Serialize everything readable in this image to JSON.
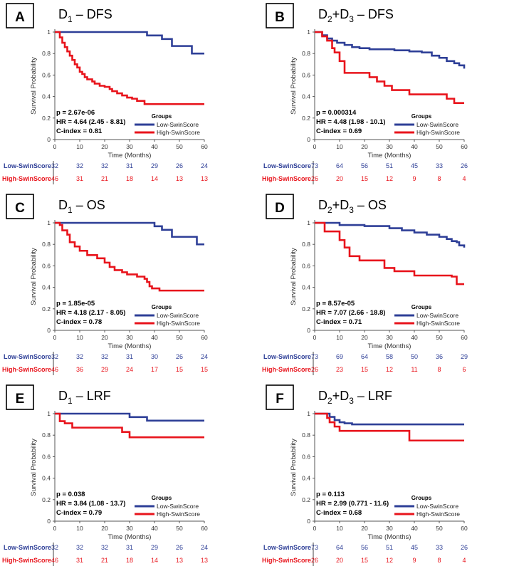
{
  "colors": {
    "low": "#2e3f97",
    "high": "#e8141c",
    "axis": "#555555",
    "risk_label_low": "#2e3f97",
    "risk_label_high": "#e8141c"
  },
  "common": {
    "xlabel": "Time (Months)",
    "ylabel": "Survival Probability",
    "legend_title": "Groups",
    "legend_low": "Low-SwinScore",
    "legend_high": "High-SwinScore",
    "risk_low_label": "Low-SwinScore",
    "risk_high_label": "High-SwinScore",
    "xticks": [
      "0",
      "10",
      "20",
      "30",
      "40",
      "50",
      "60"
    ],
    "yticks": [
      "0",
      "0.2",
      "0.4",
      "0.6",
      "0.8",
      "1"
    ]
  },
  "chart_data": [
    {
      "type": "line",
      "letter": "A",
      "title_main": "D",
      "title_sub": "1",
      "title_rest": "– DFS",
      "p": "p = 2.67e-06",
      "hr": "HR = 4.64 (2.45 - 8.81)",
      "cindex": "C-index = 0.81",
      "xlim": [
        0,
        60
      ],
      "ylim": [
        0,
        1
      ],
      "series": [
        {
          "group": "low",
          "x": [
            0,
            37,
            43,
            47,
            55,
            60
          ],
          "y": [
            1,
            0.968,
            0.935,
            0.87,
            0.8,
            0.8
          ]
        },
        {
          "group": "high",
          "x": [
            0,
            2,
            3,
            4,
            5,
            6,
            7,
            8,
            9,
            10,
            11,
            12,
            13,
            15,
            16,
            18,
            20,
            22,
            23,
            25,
            27,
            29,
            31,
            33,
            36,
            60
          ],
          "y": [
            1,
            0.95,
            0.9,
            0.86,
            0.82,
            0.78,
            0.74,
            0.7,
            0.67,
            0.63,
            0.61,
            0.58,
            0.56,
            0.54,
            0.52,
            0.5,
            0.49,
            0.47,
            0.45,
            0.43,
            0.41,
            0.39,
            0.38,
            0.36,
            0.33,
            0.33
          ]
        }
      ],
      "risk_low": [
        "32",
        "32",
        "32",
        "31",
        "29",
        "26",
        "24"
      ],
      "risk_high": [
        "46",
        "31",
        "21",
        "18",
        "14",
        "13",
        "13"
      ]
    },
    {
      "type": "line",
      "letter": "B",
      "title_main": "D",
      "title_sub": "2",
      "title_rest": "+D",
      "title_sub2": "3",
      "title_rest2": "– DFS",
      "p": "p = 0.000314",
      "hr": "HR = 4.48 (1.98 - 10.1)",
      "cindex": "C-index = 0.69",
      "xlim": [
        0,
        60
      ],
      "ylim": [
        0,
        1
      ],
      "series": [
        {
          "group": "low",
          "x": [
            0,
            3,
            5,
            7,
            9,
            12,
            15,
            18,
            22,
            27,
            32,
            38,
            43,
            47,
            50,
            53,
            56,
            58,
            60
          ],
          "y": [
            1,
            0.97,
            0.94,
            0.92,
            0.9,
            0.88,
            0.86,
            0.85,
            0.84,
            0.84,
            0.83,
            0.82,
            0.81,
            0.78,
            0.76,
            0.73,
            0.71,
            0.69,
            0.66
          ]
        },
        {
          "group": "high",
          "x": [
            0,
            3,
            5,
            7,
            8,
            10,
            12,
            22,
            25,
            28,
            31,
            35,
            38,
            42,
            45,
            49,
            53,
            56,
            60
          ],
          "y": [
            1,
            0.96,
            0.92,
            0.85,
            0.81,
            0.73,
            0.62,
            0.58,
            0.54,
            0.5,
            0.46,
            0.46,
            0.42,
            0.42,
            0.42,
            0.42,
            0.38,
            0.34,
            0.34
          ]
        }
      ],
      "risk_low": [
        "73",
        "64",
        "56",
        "51",
        "45",
        "33",
        "26"
      ],
      "risk_high": [
        "26",
        "20",
        "15",
        "12",
        "9",
        "8",
        "4"
      ]
    },
    {
      "type": "line",
      "letter": "C",
      "title_main": "D",
      "title_sub": "1",
      "title_rest": "– OS",
      "p": "p = 1.85e-05",
      "hr": "HR = 4.18 (2.17 - 8.05)",
      "cindex": "C-index = 0.78",
      "xlim": [
        0,
        60
      ],
      "ylim": [
        0,
        1
      ],
      "series": [
        {
          "group": "low",
          "x": [
            0,
            40,
            43,
            47,
            55,
            57,
            60
          ],
          "y": [
            1,
            0.968,
            0.935,
            0.87,
            0.87,
            0.8,
            0.8
          ]
        },
        {
          "group": "high",
          "x": [
            0,
            2,
            3,
            5,
            6,
            8,
            10,
            13,
            17,
            20,
            22,
            24,
            27,
            29,
            33,
            36,
            37,
            38,
            39,
            42,
            60
          ],
          "y": [
            1,
            0.98,
            0.93,
            0.89,
            0.82,
            0.78,
            0.74,
            0.7,
            0.67,
            0.63,
            0.59,
            0.56,
            0.54,
            0.52,
            0.5,
            0.48,
            0.45,
            0.41,
            0.39,
            0.37,
            0.37
          ]
        }
      ],
      "risk_low": [
        "32",
        "32",
        "32",
        "31",
        "30",
        "26",
        "24"
      ],
      "risk_high": [
        "46",
        "36",
        "29",
        "24",
        "17",
        "15",
        "15"
      ]
    },
    {
      "type": "line",
      "letter": "D",
      "title_main": "D",
      "title_sub": "2",
      "title_rest": "+D",
      "title_sub2": "3",
      "title_rest2": "– OS",
      "p": "p = 8.57e-05",
      "hr": "HR = 7.07 (2.66 - 18.8)",
      "cindex": "C-index = 0.71",
      "xlim": [
        0,
        60
      ],
      "ylim": [
        0,
        1
      ],
      "series": [
        {
          "group": "low",
          "x": [
            0,
            10,
            20,
            30,
            35,
            40,
            45,
            50,
            53,
            55,
            57,
            58,
            60
          ],
          "y": [
            1,
            0.98,
            0.97,
            0.95,
            0.93,
            0.91,
            0.89,
            0.87,
            0.85,
            0.83,
            0.82,
            0.79,
            0.77
          ]
        },
        {
          "group": "high",
          "x": [
            0,
            4,
            10,
            12,
            14,
            18,
            28,
            32,
            40,
            45,
            55,
            57,
            60
          ],
          "y": [
            1,
            0.92,
            0.84,
            0.77,
            0.69,
            0.65,
            0.58,
            0.55,
            0.51,
            0.51,
            0.5,
            0.43,
            0.43
          ]
        }
      ],
      "risk_low": [
        "73",
        "69",
        "64",
        "58",
        "50",
        "36",
        "29"
      ],
      "risk_high": [
        "26",
        "23",
        "15",
        "12",
        "11",
        "8",
        "6"
      ]
    },
    {
      "type": "line",
      "letter": "E",
      "title_main": "D",
      "title_sub": "1",
      "title_rest": "– LRF",
      "p": "p = 0.038",
      "hr": "HR = 3.84 (1.08 - 13.7)",
      "cindex": "C-index = 0.79",
      "xlim": [
        0,
        60
      ],
      "ylim": [
        0,
        1
      ],
      "series": [
        {
          "group": "low",
          "x": [
            0,
            30,
            37,
            60
          ],
          "y": [
            1,
            0.968,
            0.935,
            0.935
          ]
        },
        {
          "group": "high",
          "x": [
            0,
            2,
            4,
            7,
            27,
            30,
            60
          ],
          "y": [
            1,
            0.93,
            0.91,
            0.87,
            0.83,
            0.78,
            0.78
          ]
        }
      ],
      "risk_low": [
        "32",
        "32",
        "32",
        "31",
        "29",
        "26",
        "24"
      ],
      "risk_high": [
        "46",
        "31",
        "21",
        "18",
        "14",
        "13",
        "13"
      ]
    },
    {
      "type": "line",
      "letter": "F",
      "title_main": "D",
      "title_sub": "2",
      "title_rest": "+D",
      "title_sub2": "3",
      "title_rest2": "– LRF",
      "p": "p = 0.113",
      "hr": "HR = 2.99 (0.771 - 11.6)",
      "cindex": "C-index = 0.68",
      "xlim": [
        0,
        60
      ],
      "ylim": [
        0,
        1
      ],
      "series": [
        {
          "group": "low",
          "x": [
            0,
            6,
            8,
            10,
            12,
            15,
            60
          ],
          "y": [
            1,
            0.97,
            0.94,
            0.92,
            0.91,
            0.9,
            0.9
          ]
        },
        {
          "group": "high",
          "x": [
            0,
            5,
            6,
            8,
            10,
            37,
            38,
            60
          ],
          "y": [
            1,
            0.96,
            0.92,
            0.88,
            0.84,
            0.84,
            0.75,
            0.75
          ]
        }
      ],
      "risk_low": [
        "73",
        "64",
        "56",
        "51",
        "45",
        "33",
        "26"
      ],
      "risk_high": [
        "26",
        "20",
        "15",
        "12",
        "9",
        "8",
        "4"
      ]
    }
  ]
}
